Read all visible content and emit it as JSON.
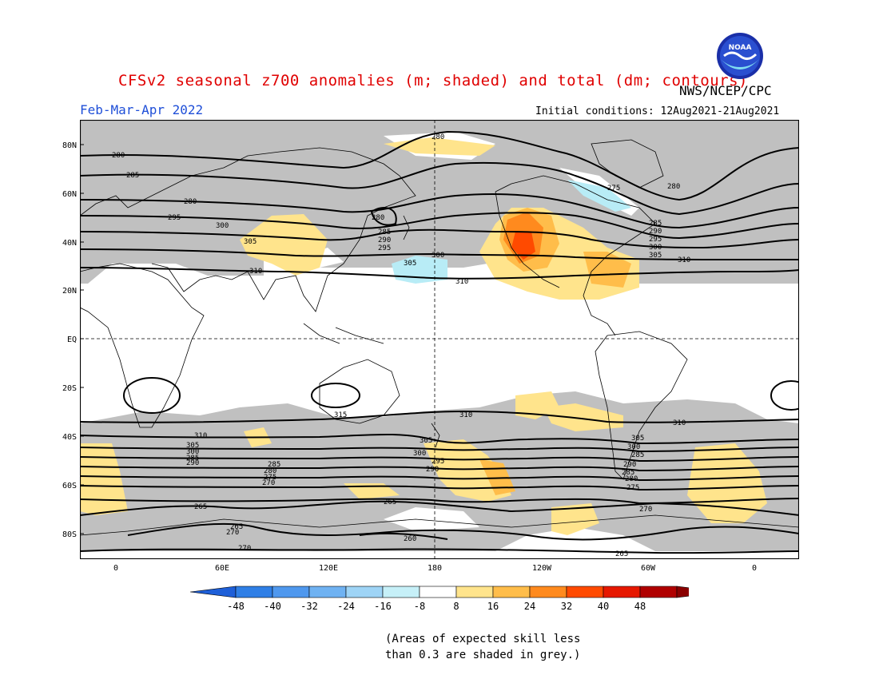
{
  "header": {
    "title": "CFSv2 seasonal z700 anomalies (m; shaded) and total (dm; contours)",
    "agency": "NWS/NCEP/CPC",
    "season": "Feb-Mar-Apr 2022",
    "initial_conditions": "Initial conditions: 12Aug2021-21Aug2021",
    "logo_text": "NOAA"
  },
  "axes": {
    "lat_labels": [
      "80N",
      "60N",
      "40N",
      "20N",
      "EQ",
      "20S",
      "40S",
      "60S",
      "80S"
    ],
    "lon_labels": [
      "0",
      "60E",
      "120E",
      "180",
      "120W",
      "60W",
      "0"
    ]
  },
  "contours": {
    "labels": [
      "280",
      "285",
      "290",
      "295",
      "300",
      "305",
      "310",
      "315",
      "275",
      "270",
      "265",
      "260"
    ]
  },
  "colorbar": {
    "labels": [
      "-48",
      "-40",
      "-32",
      "-24",
      "-16",
      "-8",
      "8",
      "16",
      "24",
      "32",
      "40",
      "48"
    ],
    "colors": [
      "#1e5fd8",
      "#2f7fe6",
      "#4f98ee",
      "#6fb2f2",
      "#9ed4f6",
      "#c6f0f8",
      "#ffffff",
      "#ffe48c",
      "#ffbd4a",
      "#ff8a1e",
      "#ff4a00",
      "#e61800",
      "#b00000",
      "#8a0000"
    ],
    "skill_grey": "#c0c0c0"
  },
  "notes": {
    "line1": "(Areas of expected skill less",
    "line2": "than 0.3 are shaded in grey.)"
  }
}
